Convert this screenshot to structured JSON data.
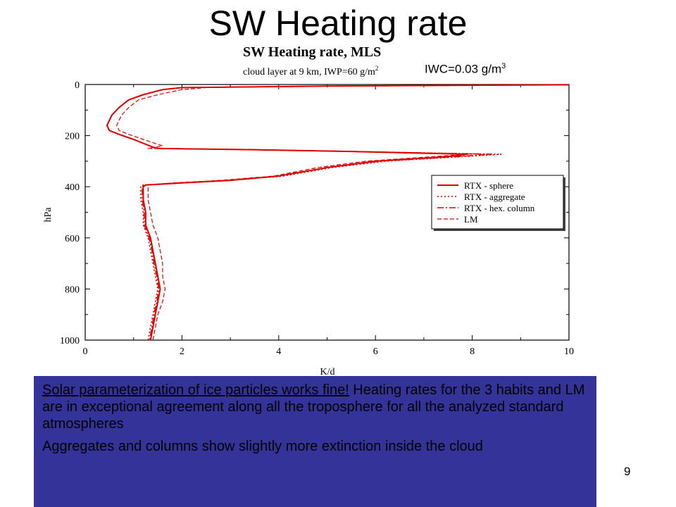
{
  "slide": {
    "title": "SW Heating rate",
    "number": "9",
    "annotation_main": "IWC=0.03 g/m",
    "annotation_sup": "3",
    "text": {
      "p1_underlined": "Solar parameterization of ice particles works fine!",
      "p1_rest": " Heating rates for the 3 habits and LM are in exceptional agreement along all the troposphere for all the analyzed standard atmospheres",
      "p2": "Aggregates and columns show slightly more extinction inside the cloud"
    }
  },
  "colors": {
    "series": "#dd0000",
    "box": "#333399"
  },
  "chart_data": {
    "type": "line",
    "title": "SW Heating rate, MLS",
    "subtitle": "cloud layer at 9 km, IWP=60 g/m",
    "subtitle_sup": "2",
    "xlabel": "K/d",
    "ylabel": "hPa",
    "xlim": [
      0,
      10
    ],
    "ylim": [
      0,
      1000
    ],
    "y_inverted": true,
    "xticks": [
      "0",
      "2",
      "4",
      "6",
      "8",
      "10"
    ],
    "yticks": [
      "0",
      "200",
      "400",
      "600",
      "800",
      "1000"
    ],
    "legend_position": "right",
    "grid": false,
    "series": [
      {
        "name": "RTX - sphere",
        "style": "solid",
        "points": [
          [
            10,
            1
          ],
          [
            8,
            3
          ],
          [
            5,
            6
          ],
          [
            2,
            12
          ],
          [
            1.6,
            20
          ],
          [
            1.2,
            40
          ],
          [
            0.9,
            60
          ],
          [
            0.7,
            90
          ],
          [
            0.55,
            120
          ],
          [
            0.45,
            160
          ],
          [
            0.5,
            180
          ],
          [
            0.7,
            195
          ],
          [
            1.0,
            215
          ],
          [
            1.4,
            245
          ],
          [
            1.5,
            250
          ],
          [
            3.5,
            255
          ],
          [
            5.5,
            262
          ],
          [
            7.9,
            273
          ],
          [
            7.5,
            282
          ],
          [
            6.0,
            300
          ],
          [
            5.0,
            325
          ],
          [
            4.0,
            358
          ],
          [
            3.0,
            375
          ],
          [
            2.0,
            385
          ],
          [
            1.25,
            393
          ],
          [
            1.2,
            400
          ],
          [
            1.2,
            450
          ],
          [
            1.25,
            500
          ],
          [
            1.25,
            550
          ],
          [
            1.35,
            600
          ],
          [
            1.4,
            650
          ],
          [
            1.45,
            700
          ],
          [
            1.5,
            750
          ],
          [
            1.55,
            800
          ],
          [
            1.5,
            850
          ],
          [
            1.45,
            900
          ],
          [
            1.4,
            950
          ],
          [
            1.35,
            1000
          ]
        ]
      },
      {
        "name": "RTX - aggregate",
        "style": "dotted",
        "points": [
          [
            10,
            1
          ],
          [
            8,
            3
          ],
          [
            5,
            6
          ],
          [
            2,
            12
          ],
          [
            1.6,
            20
          ],
          [
            1.2,
            40
          ],
          [
            0.9,
            60
          ],
          [
            0.7,
            90
          ],
          [
            0.55,
            120
          ],
          [
            0.45,
            160
          ],
          [
            0.5,
            180
          ],
          [
            0.7,
            195
          ],
          [
            1.0,
            215
          ],
          [
            1.4,
            245
          ],
          [
            1.5,
            250
          ],
          [
            3.5,
            255
          ],
          [
            5.5,
            262
          ],
          [
            8.6,
            273
          ],
          [
            7.8,
            282
          ],
          [
            6.2,
            300
          ],
          [
            5.1,
            325
          ],
          [
            4.1,
            358
          ],
          [
            3.0,
            375
          ],
          [
            2.0,
            385
          ],
          [
            1.2,
            393
          ],
          [
            1.15,
            400
          ],
          [
            1.15,
            450
          ],
          [
            1.2,
            500
          ],
          [
            1.2,
            550
          ],
          [
            1.3,
            600
          ],
          [
            1.35,
            650
          ],
          [
            1.4,
            700
          ],
          [
            1.45,
            750
          ],
          [
            1.5,
            800
          ],
          [
            1.45,
            850
          ],
          [
            1.4,
            900
          ],
          [
            1.35,
            950
          ],
          [
            1.3,
            1000
          ]
        ]
      },
      {
        "name": "RTX - hex. column",
        "style": "dashdot",
        "points": [
          [
            10,
            1
          ],
          [
            8,
            3
          ],
          [
            5,
            6
          ],
          [
            2,
            12
          ],
          [
            1.6,
            20
          ],
          [
            1.2,
            40
          ],
          [
            0.9,
            60
          ],
          [
            0.7,
            90
          ],
          [
            0.55,
            120
          ],
          [
            0.45,
            160
          ],
          [
            0.5,
            180
          ],
          [
            0.7,
            195
          ],
          [
            1.0,
            215
          ],
          [
            1.4,
            245
          ],
          [
            1.5,
            250
          ],
          [
            3.5,
            255
          ],
          [
            5.5,
            262
          ],
          [
            8.4,
            273
          ],
          [
            7.7,
            282
          ],
          [
            6.1,
            300
          ],
          [
            5.0,
            325
          ],
          [
            4.0,
            358
          ],
          [
            3.0,
            375
          ],
          [
            2.0,
            385
          ],
          [
            1.2,
            393
          ],
          [
            1.18,
            400
          ],
          [
            1.18,
            450
          ],
          [
            1.22,
            500
          ],
          [
            1.22,
            550
          ],
          [
            1.32,
            600
          ],
          [
            1.38,
            650
          ],
          [
            1.42,
            700
          ],
          [
            1.48,
            750
          ],
          [
            1.52,
            800
          ],
          [
            1.48,
            850
          ],
          [
            1.42,
            900
          ],
          [
            1.38,
            950
          ],
          [
            1.33,
            1000
          ]
        ]
      },
      {
        "name": "LM",
        "style": "dashed",
        "points": [
          [
            10,
            1
          ],
          [
            8,
            3
          ],
          [
            5,
            6
          ],
          [
            2.5,
            12
          ],
          [
            2.0,
            20
          ],
          [
            1.5,
            40
          ],
          [
            1.1,
            60
          ],
          [
            0.9,
            90
          ],
          [
            0.75,
            120
          ],
          [
            0.65,
            160
          ],
          [
            0.7,
            180
          ],
          [
            0.9,
            195
          ],
          [
            1.2,
            215
          ],
          [
            1.6,
            240
          ],
          [
            1.3,
            250
          ],
          [
            3.5,
            255
          ],
          [
            5.5,
            262
          ],
          [
            8.0,
            272
          ],
          [
            7.2,
            282
          ],
          [
            5.8,
            300
          ],
          [
            4.8,
            325
          ],
          [
            3.9,
            358
          ],
          [
            2.8,
            375
          ],
          [
            1.8,
            385
          ],
          [
            1.3,
            393
          ],
          [
            1.3,
            400
          ],
          [
            1.3,
            450
          ],
          [
            1.35,
            500
          ],
          [
            1.4,
            550
          ],
          [
            1.5,
            600
          ],
          [
            1.55,
            650
          ],
          [
            1.6,
            700
          ],
          [
            1.6,
            750
          ],
          [
            1.65,
            800
          ],
          [
            1.6,
            850
          ],
          [
            1.5,
            900
          ],
          [
            1.45,
            950
          ],
          [
            1.4,
            1000
          ]
        ]
      }
    ]
  }
}
